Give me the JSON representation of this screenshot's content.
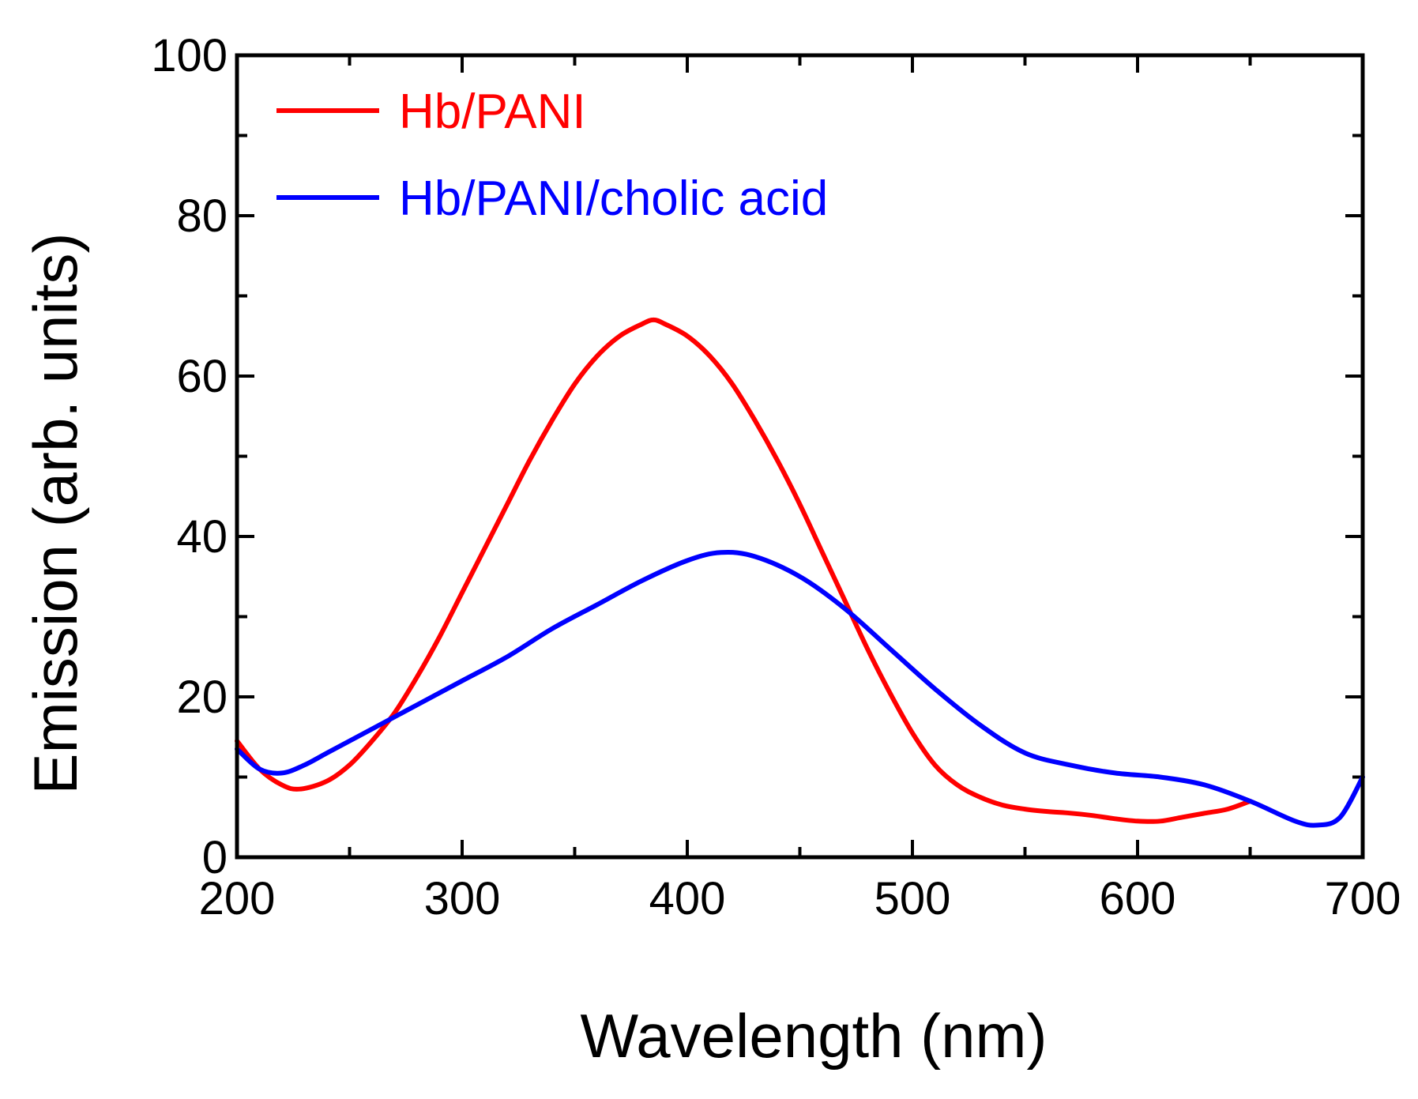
{
  "chart_data": {
    "type": "line",
    "xlabel": "Wavelength (nm)",
    "ylabel": "Emission (arb. units)",
    "xlim": [
      200,
      700
    ],
    "ylim": [
      0,
      100
    ],
    "x_ticks": [
      200,
      300,
      400,
      500,
      600,
      700
    ],
    "y_ticks": [
      0,
      20,
      40,
      60,
      80,
      100
    ],
    "x_minor_step": 50,
    "y_minor_step": 10,
    "grid": false,
    "legend_position": "top-left",
    "series": [
      {
        "name": "Hb/PANI",
        "color": "#ff0000",
        "points": [
          [
            200,
            14.5
          ],
          [
            210,
            11
          ],
          [
            220,
            9
          ],
          [
            228,
            8.5
          ],
          [
            240,
            9.5
          ],
          [
            250,
            11.5
          ],
          [
            260,
            14.5
          ],
          [
            270,
            18
          ],
          [
            280,
            22.5
          ],
          [
            290,
            27.5
          ],
          [
            300,
            33
          ],
          [
            310,
            38.5
          ],
          [
            320,
            44
          ],
          [
            330,
            49.5
          ],
          [
            340,
            54.5
          ],
          [
            350,
            59
          ],
          [
            360,
            62.5
          ],
          [
            370,
            65
          ],
          [
            380,
            66.5
          ],
          [
            385,
            67
          ],
          [
            390,
            66.5
          ],
          [
            400,
            65
          ],
          [
            410,
            62.5
          ],
          [
            420,
            59
          ],
          [
            430,
            54.5
          ],
          [
            440,
            49.5
          ],
          [
            450,
            44
          ],
          [
            460,
            38
          ],
          [
            470,
            32
          ],
          [
            480,
            26
          ],
          [
            490,
            20.5
          ],
          [
            500,
            15.5
          ],
          [
            510,
            11.5
          ],
          [
            520,
            9
          ],
          [
            530,
            7.5
          ],
          [
            540,
            6.5
          ],
          [
            550,
            6
          ],
          [
            560,
            5.7
          ],
          [
            570,
            5.5
          ],
          [
            580,
            5.2
          ],
          [
            590,
            4.8
          ],
          [
            600,
            4.5
          ],
          [
            610,
            4.5
          ],
          [
            620,
            5
          ],
          [
            630,
            5.5
          ],
          [
            640,
            6
          ],
          [
            650,
            7
          ]
        ]
      },
      {
        "name": "Hb/PANI/cholic acid",
        "color": "#0000ff",
        "points": [
          [
            200,
            13.5
          ],
          [
            210,
            11
          ],
          [
            220,
            10.5
          ],
          [
            230,
            11.5
          ],
          [
            240,
            13
          ],
          [
            260,
            16
          ],
          [
            280,
            19
          ],
          [
            300,
            22
          ],
          [
            320,
            25
          ],
          [
            340,
            28.5
          ],
          [
            360,
            31.5
          ],
          [
            380,
            34.5
          ],
          [
            400,
            37
          ],
          [
            415,
            38
          ],
          [
            430,
            37.5
          ],
          [
            450,
            35
          ],
          [
            470,
            31
          ],
          [
            490,
            26
          ],
          [
            510,
            21
          ],
          [
            530,
            16.5
          ],
          [
            550,
            13
          ],
          [
            570,
            11.5
          ],
          [
            590,
            10.5
          ],
          [
            610,
            10
          ],
          [
            630,
            9
          ],
          [
            650,
            7
          ],
          [
            670,
            4.5
          ],
          [
            680,
            4
          ],
          [
            690,
            5
          ],
          [
            700,
            10
          ]
        ]
      }
    ]
  }
}
